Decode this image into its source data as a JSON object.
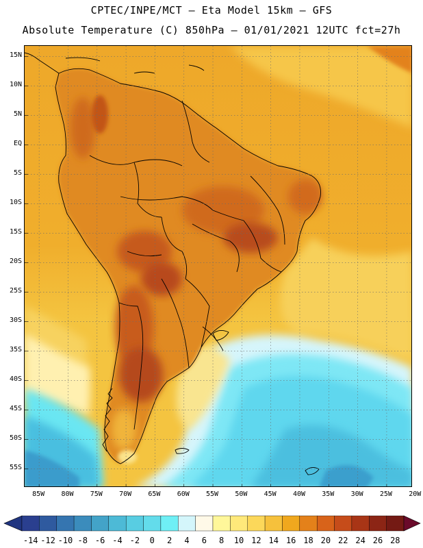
{
  "header": {
    "line1": "CPTEC/INPE/MCT –  Eta Model 15km – GFS",
    "line2": "Absolute Temperature (C) 850hPa – 01/01/2021 12UTC fct=27h"
  },
  "map": {
    "lat_labels": [
      "15N",
      "10N",
      "5N",
      "EQ",
      "5S",
      "10S",
      "15S",
      "20S",
      "25S",
      "30S",
      "35S",
      "40S",
      "45S",
      "50S",
      "55S"
    ],
    "lon_labels": [
      "85W",
      "80W",
      "75W",
      "70W",
      "65W",
      "60W",
      "55W",
      "50W",
      "45W",
      "40W",
      "35W",
      "30W",
      "25W",
      "20W"
    ],
    "lat_values": [
      15,
      10,
      5,
      0,
      -5,
      -10,
      -15,
      -20,
      -25,
      -30,
      -35,
      -40,
      -45,
      -50,
      -55
    ],
    "lon_values": [
      -85,
      -80,
      -75,
      -70,
      -65,
      -60,
      -55,
      -50,
      -45,
      -40,
      -35,
      -30,
      -25,
      -20
    ]
  },
  "colorbar": {
    "labels": [
      "-14",
      "-12",
      "-10",
      "-8",
      "-6",
      "-4",
      "-2",
      "0",
      "2",
      "4",
      "6",
      "8",
      "10",
      "12",
      "14",
      "16",
      "18",
      "20",
      "22",
      "24",
      "26",
      "28"
    ],
    "colors": [
      "#2a3f8f",
      "#2f5a9f",
      "#3575b0",
      "#3b8cbc",
      "#43a3c8",
      "#4dbad6",
      "#58cde2",
      "#63dceb",
      "#6feff5",
      "#d4f6fb",
      "#fff9e8",
      "#fff79a",
      "#ffe97a",
      "#fcd85a",
      "#f6c13c",
      "#f0a81e",
      "#e4811a",
      "#d8631a",
      "#c64c1a",
      "#a83516",
      "#8c2515",
      "#741a14"
    ],
    "low_end_color": "#203580",
    "high_end_color": "#6a0a2a"
  },
  "palette": {
    "ocean_warm": "#f3b52e",
    "land_hot": "#d56a1c",
    "land_very_hot": "#b3461a",
    "cold_water": "#57d3ef",
    "cool_water": "#c9f3fb",
    "southern_cold": "#3fa6cf"
  }
}
